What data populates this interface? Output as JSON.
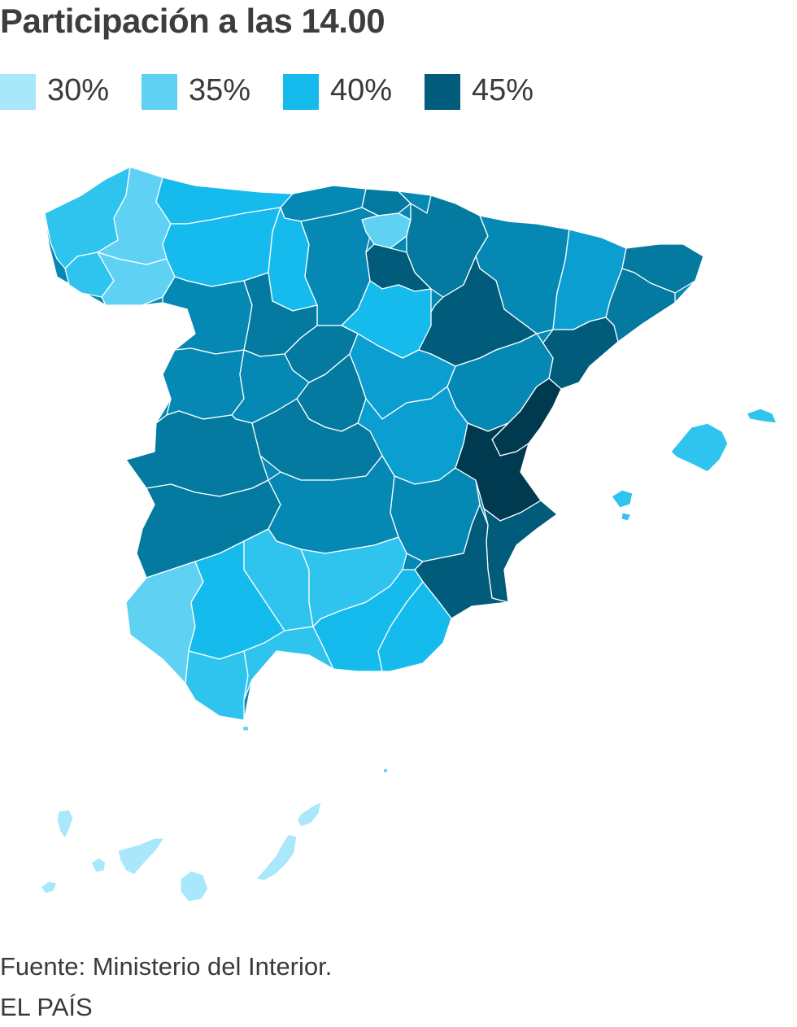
{
  "title": "Participación a las 14.00",
  "legend": [
    {
      "label": "30%",
      "color": "#a9e7fb"
    },
    {
      "label": "35%",
      "color": "#5fd2f3"
    },
    {
      "label": "40%",
      "color": "#15bbec"
    },
    {
      "label": "45%",
      "color": "#005c7a"
    }
  ],
  "map_colors": {
    "c30": "#a9e7fb",
    "c35": "#5fd2f3",
    "c38": "#2fc4ee",
    "c40": "#15bbec",
    "c42": "#0a9fd0",
    "c43": "#0589b4",
    "c44": "#047aa0",
    "c45": "#005c7a",
    "c50": "#003a50"
  },
  "source": "Fuente: Ministerio del Interior.",
  "brand": "EL PAÍS"
}
